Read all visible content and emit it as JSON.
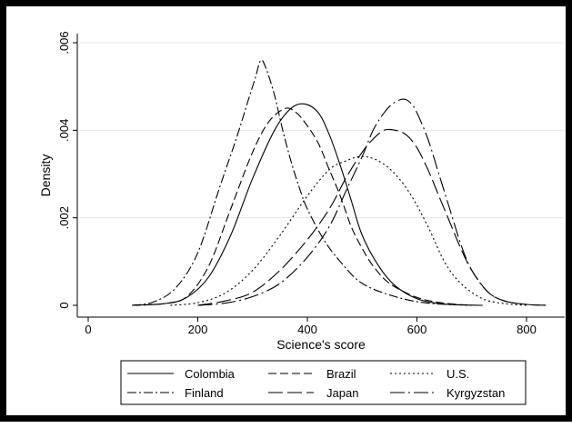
{
  "chart_data": {
    "type": "line",
    "title": "",
    "xlabel": "Science's score",
    "ylabel": "Density",
    "xlim": [
      0,
      850
    ],
    "ylim": [
      0,
      0.006
    ],
    "xticks": [
      0,
      200,
      400,
      600,
      800
    ],
    "yticks": [
      0,
      0.002,
      0.004,
      0.006
    ],
    "ytick_labels": [
      "0",
      ".002",
      ".004",
      ".006"
    ],
    "grid": "horizontal",
    "legend_position": "bottom",
    "series": [
      {
        "name": "Colombia",
        "style": "solid",
        "x": [
          80,
          140,
          180,
          220,
          260,
          300,
          340,
          370,
          395,
          420,
          440,
          460,
          480,
          500,
          530,
          560,
          600,
          640,
          680,
          720
        ],
        "y": [
          0,
          4e-05,
          0.00018,
          0.00065,
          0.0016,
          0.0029,
          0.004,
          0.0045,
          0.0046,
          0.0044,
          0.0039,
          0.0032,
          0.0024,
          0.0016,
          0.0009,
          0.00045,
          0.00015,
          4e-05,
          1e-05,
          0
        ]
      },
      {
        "name": "Brazil",
        "style": "dash",
        "x": [
          80,
          140,
          180,
          220,
          260,
          300,
          330,
          360,
          380,
          400,
          420,
          440,
          460,
          480,
          500,
          520,
          550,
          600,
          650,
          700
        ],
        "y": [
          0,
          4e-05,
          0.0002,
          0.0009,
          0.0022,
          0.0035,
          0.0042,
          0.0045,
          0.0044,
          0.0041,
          0.0037,
          0.0031,
          0.0025,
          0.0018,
          0.0013,
          0.0009,
          0.0005,
          0.00018,
          5e-05,
          0
        ]
      },
      {
        "name": "U.S.",
        "style": "dot",
        "x": [
          150,
          200,
          250,
          300,
          350,
          400,
          440,
          470,
          500,
          530,
          560,
          590,
          620,
          650,
          680,
          720,
          760,
          800
        ],
        "y": [
          0,
          6e-05,
          0.00028,
          0.0008,
          0.0016,
          0.0025,
          0.0031,
          0.0033,
          0.0034,
          0.0033,
          0.003,
          0.0025,
          0.0018,
          0.001,
          0.0005,
          0.00015,
          4e-05,
          0
        ]
      },
      {
        "name": "Finland",
        "style": "dash-dot",
        "x": [
          80,
          120,
          160,
          200,
          240,
          270,
          290,
          305,
          315,
          325,
          340,
          355,
          370,
          385,
          400,
          430,
          460,
          500,
          560,
          620,
          700
        ],
        "y": [
          0,
          8e-05,
          0.0004,
          0.0012,
          0.0027,
          0.0038,
          0.0046,
          0.0052,
          0.0056,
          0.0054,
          0.0048,
          0.004,
          0.0033,
          0.0027,
          0.0022,
          0.0015,
          0.001,
          0.0005,
          0.0002,
          5e-05,
          0
        ]
      },
      {
        "name": "Japan",
        "style": "long-dash",
        "x": [
          200,
          250,
          300,
          350,
          400,
          440,
          470,
          500,
          520,
          540,
          560,
          580,
          600,
          620,
          640,
          660,
          680,
          700,
          730,
          760,
          800,
          840
        ],
        "y": [
          0,
          0.0001,
          0.0003,
          0.0008,
          0.0015,
          0.0022,
          0.0029,
          0.0035,
          0.0038,
          0.004,
          0.004,
          0.0039,
          0.0036,
          0.0031,
          0.0025,
          0.0019,
          0.0013,
          0.0008,
          0.0003,
          0.0001,
          2e-05,
          0
        ]
      },
      {
        "name": "Kyrgyzstan",
        "style": "dash-dot-long",
        "x": [
          200,
          250,
          300,
          350,
          400,
          440,
          470,
          500,
          520,
          540,
          555,
          570,
          580,
          590,
          600,
          620,
          640,
          660,
          680,
          700,
          730,
          760,
          800,
          840
        ],
        "y": [
          0,
          5e-05,
          0.0002,
          0.0005,
          0.0011,
          0.0018,
          0.0026,
          0.0034,
          0.004,
          0.0044,
          0.0046,
          0.0047,
          0.0047,
          0.0046,
          0.0044,
          0.0038,
          0.003,
          0.0022,
          0.0014,
          0.0008,
          0.0003,
          0.0001,
          2e-05,
          0
        ]
      }
    ]
  }
}
